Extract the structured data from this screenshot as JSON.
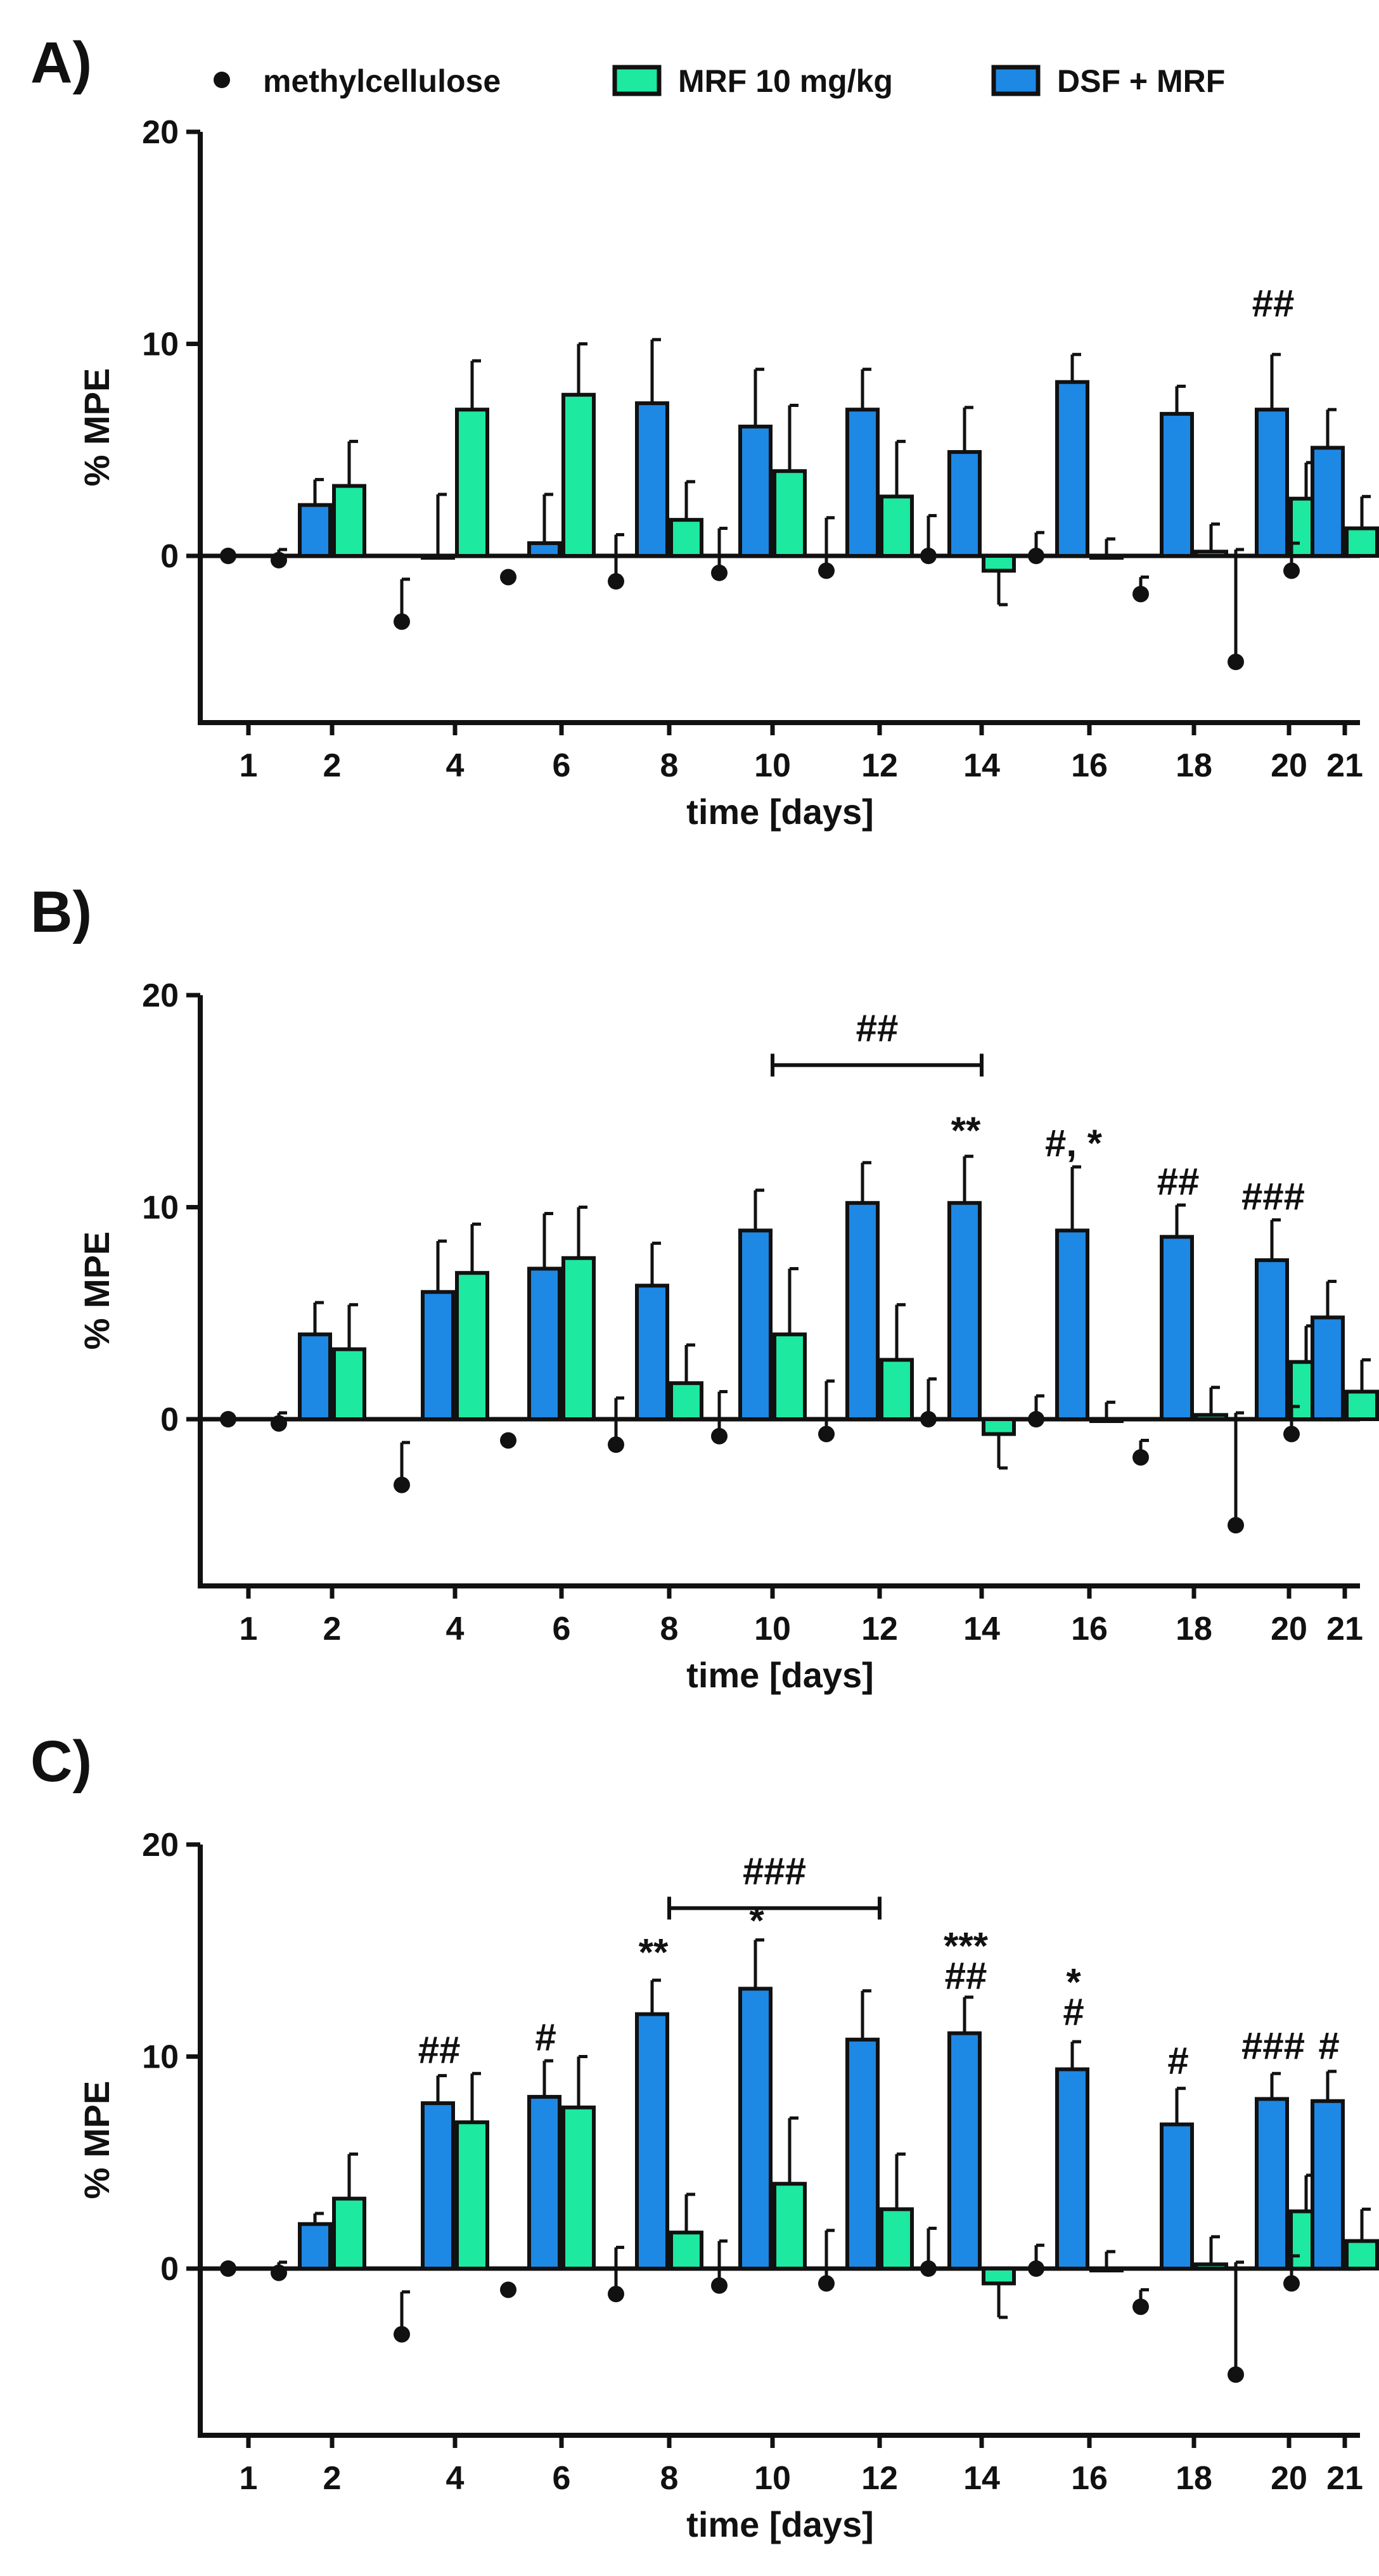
{
  "legend": {
    "items": [
      {
        "label": "methylcellulose",
        "marker": "dot",
        "color": "#111111"
      },
      {
        "label": "MRF 10 mg/kg",
        "marker": "bar",
        "color": "#1de9a0"
      },
      {
        "label": "DSF + MRF",
        "marker": "bar",
        "color": "#1e88e5"
      }
    ]
  },
  "colors": {
    "mrf": "#1de9a0",
    "dsf": "#1e88e5",
    "axis": "#111111"
  },
  "chart_data": [
    {
      "panel": "A)",
      "type": "bar",
      "xlabel": "time [days]",
      "ylabel": "% MPE",
      "ylim": [
        -8,
        20
      ],
      "yticks": [
        0,
        10,
        20
      ],
      "categories": [
        "1",
        "2",
        "4",
        "6",
        "8",
        "10",
        "12",
        "14",
        "16",
        "18",
        "20",
        "21"
      ],
      "series": [
        {
          "name": "methylcellulose",
          "kind": "point",
          "values": [
            0,
            -0.2,
            -3.1,
            -1.0,
            -1.2,
            -0.8,
            -0.7,
            0,
            0,
            -1.8,
            -5.0,
            -0.7
          ],
          "errors": [
            0,
            0.5,
            2.0,
            0,
            2.2,
            2.1,
            2.5,
            1.9,
            1.1,
            0.8,
            5.3,
            1.3
          ]
        },
        {
          "name": "DSF + MRF",
          "kind": "bar",
          "values": [
            null,
            2.4,
            0,
            0.6,
            7.2,
            6.1,
            6.9,
            4.9,
            8.2,
            6.7,
            6.9,
            5.1
          ],
          "errors": [
            0,
            1.2,
            2.9,
            2.3,
            3.0,
            2.7,
            1.9,
            2.1,
            1.3,
            1.3,
            2.6,
            1.8
          ]
        },
        {
          "name": "MRF 10 mg/kg",
          "kind": "bar",
          "values": [
            null,
            3.3,
            6.9,
            7.6,
            1.7,
            4.0,
            2.8,
            -0.7,
            0,
            0.2,
            2.7,
            1.3
          ],
          "errors": [
            0,
            2.1,
            2.3,
            2.4,
            1.8,
            3.1,
            2.6,
            1.6,
            0.8,
            1.3,
            1.7,
            1.5
          ]
        }
      ],
      "annotations": [
        {
          "category": "20",
          "text": "##",
          "y": 11.3
        }
      ],
      "brackets": []
    },
    {
      "panel": "B)",
      "type": "bar",
      "xlabel": "time [days]",
      "ylabel": "% MPE",
      "ylim": [
        -8,
        20
      ],
      "yticks": [
        0,
        10,
        20
      ],
      "categories": [
        "1",
        "2",
        "4",
        "6",
        "8",
        "10",
        "12",
        "14",
        "16",
        "18",
        "20",
        "21"
      ],
      "series": [
        {
          "name": "methylcellulose",
          "kind": "point",
          "values": [
            0,
            -0.2,
            -3.1,
            -1.0,
            -1.2,
            -0.8,
            -0.7,
            0,
            0,
            -1.8,
            -5.0,
            -0.7
          ],
          "errors": [
            0,
            0.5,
            2.0,
            0,
            2.2,
            2.1,
            2.5,
            1.9,
            1.1,
            0.8,
            5.3,
            1.3
          ]
        },
        {
          "name": "DSF + MRF",
          "kind": "bar",
          "values": [
            null,
            4.0,
            6.0,
            7.1,
            6.3,
            8.9,
            10.2,
            10.2,
            8.9,
            8.6,
            7.5,
            4.8
          ],
          "errors": [
            0,
            1.5,
            2.4,
            2.6,
            2.0,
            1.9,
            1.9,
            2.2,
            3.0,
            1.5,
            1.9,
            1.7
          ]
        },
        {
          "name": "MRF 10 mg/kg",
          "kind": "bar",
          "values": [
            null,
            3.3,
            6.9,
            7.6,
            1.7,
            4.0,
            2.8,
            -0.7,
            0,
            0.2,
            2.7,
            1.3
          ],
          "errors": [
            0,
            2.1,
            2.3,
            2.4,
            1.8,
            3.1,
            2.6,
            1.6,
            0.8,
            1.3,
            1.7,
            1.5
          ]
        }
      ],
      "annotations": [
        {
          "category": "14",
          "text": "**",
          "y": 13.0
        },
        {
          "category": "16",
          "text": "#, *",
          "y": 12.4
        },
        {
          "category": "18",
          "text": "##",
          "y": 10.6
        },
        {
          "category": "20",
          "text": "###",
          "y": 9.9
        }
      ],
      "brackets": [
        {
          "from": "10",
          "to": "14",
          "text": "##",
          "y": 16.7
        }
      ]
    },
    {
      "panel": "C)",
      "type": "bar",
      "xlabel": "time [days]",
      "ylabel": "% MPE",
      "ylim": [
        -8,
        20
      ],
      "yticks": [
        0,
        10,
        20
      ],
      "categories": [
        "1",
        "2",
        "4",
        "6",
        "8",
        "10",
        "12",
        "14",
        "16",
        "18",
        "20",
        "21"
      ],
      "series": [
        {
          "name": "methylcellulose",
          "kind": "point",
          "values": [
            0,
            -0.2,
            -3.1,
            -1.0,
            -1.2,
            -0.8,
            -0.7,
            0,
            0,
            -1.8,
            -5.0,
            -0.7
          ],
          "errors": [
            0,
            0.5,
            2.0,
            0,
            2.2,
            2.1,
            2.5,
            1.9,
            1.1,
            0.8,
            5.3,
            1.3
          ]
        },
        {
          "name": "DSF + MRF",
          "kind": "bar",
          "values": [
            null,
            2.1,
            7.8,
            8.1,
            12.0,
            13.2,
            10.8,
            11.1,
            9.4,
            6.8,
            8.0,
            7.9
          ],
          "errors": [
            0,
            0.5,
            1.3,
            1.7,
            1.6,
            2.3,
            2.3,
            1.7,
            1.3,
            1.7,
            1.2,
            1.4
          ]
        },
        {
          "name": "MRF 10 mg/kg",
          "kind": "bar",
          "values": [
            null,
            3.3,
            6.9,
            7.6,
            1.7,
            4.0,
            2.8,
            -0.7,
            0,
            0.2,
            2.7,
            1.3
          ],
          "errors": [
            0,
            2.1,
            2.3,
            2.4,
            1.8,
            3.1,
            2.6,
            1.6,
            0.8,
            1.3,
            1.7,
            1.5
          ]
        }
      ],
      "annotations": [
        {
          "category": "4",
          "text": "##",
          "y": 9.7
        },
        {
          "category": "6",
          "text": "#",
          "y": 10.3
        },
        {
          "category": "8",
          "text": "**",
          "y": 14.3
        },
        {
          "category": "10",
          "text": "*",
          "y": 15.8
        },
        {
          "category": "14",
          "text": "***",
          "y": 14.6
        },
        {
          "category": "14",
          "text": "##",
          "y": 13.2
        },
        {
          "category": "16",
          "text": "*",
          "y": 12.9
        },
        {
          "category": "16",
          "text": "#",
          "y": 11.5
        },
        {
          "category": "18",
          "text": "#",
          "y": 9.2
        },
        {
          "category": "20",
          "text": "###",
          "y": 9.9
        },
        {
          "category": "21",
          "text": "#",
          "y": 9.9
        }
      ],
      "brackets": [
        {
          "from": "8",
          "to": "12",
          "text": "###",
          "y": 17.0
        }
      ]
    }
  ]
}
